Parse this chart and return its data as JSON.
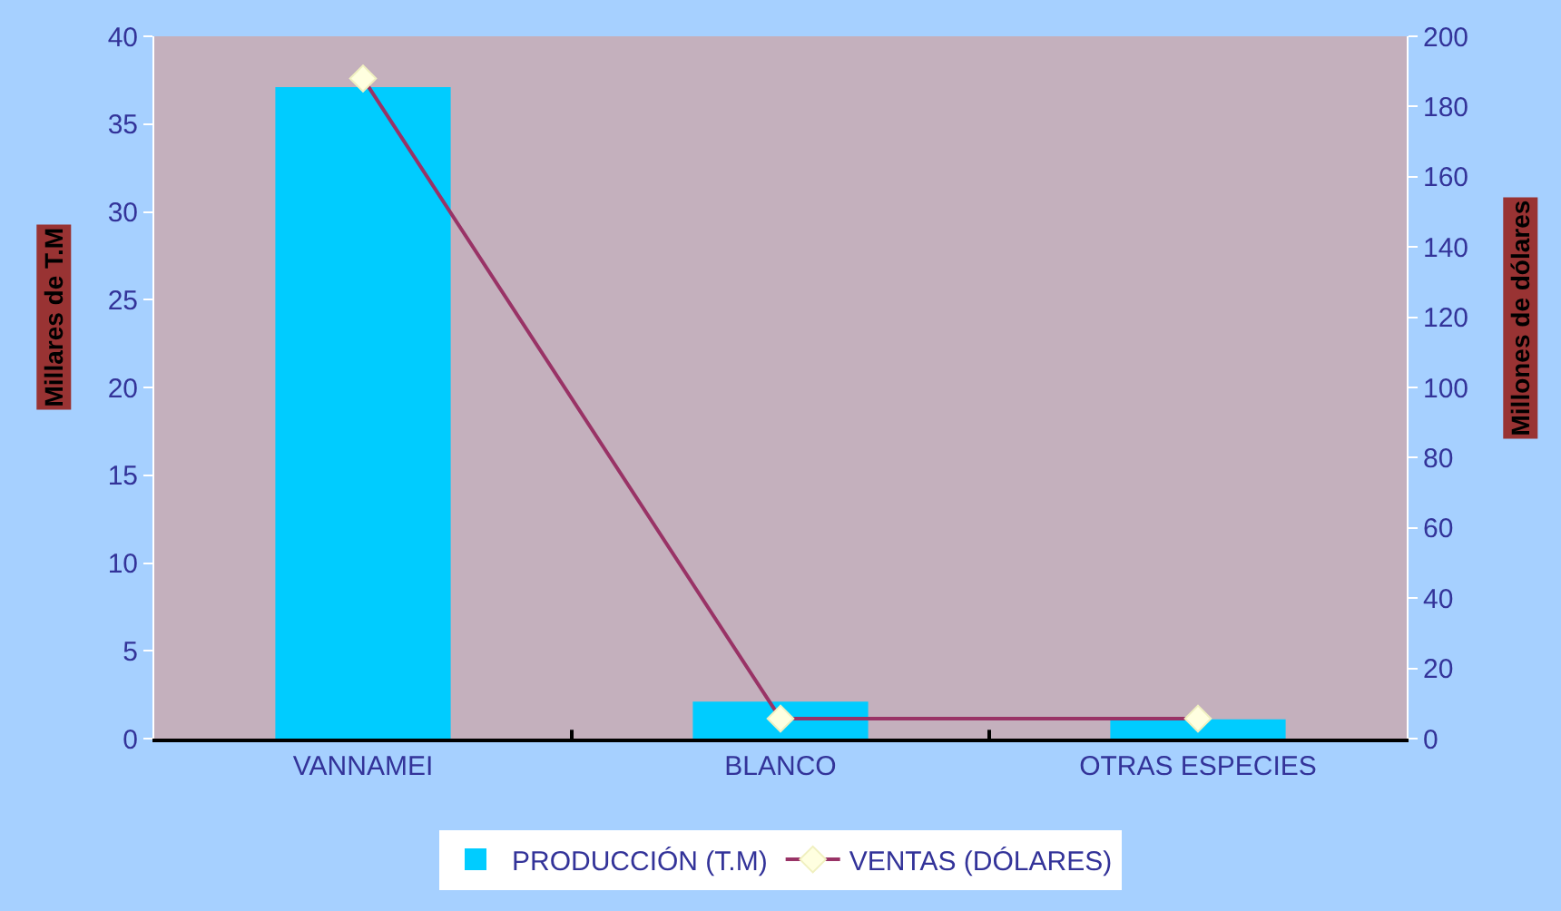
{
  "chart_data": {
    "type": "bar",
    "categories": [
      "VANNAMEI",
      "BLANCO",
      "OTRAS ESPECIES"
    ],
    "series": [
      {
        "name": "PRODUCCIÓN (T.M)",
        "color": "#00ccff",
        "values": [
          37.1,
          2.1,
          1.1
        ]
      },
      {
        "name": "VENTAS (DÓLARES)",
        "color": "#993366",
        "type": "line",
        "axis": "y2",
        "marker": "diamond",
        "values": [
          188,
          5.7,
          5.7
        ]
      }
    ],
    "ylabel": "Millares de T.M",
    "y2label": "Millones de dólares",
    "ylim": [
      0,
      40
    ],
    "yticks": [
      0,
      5,
      10,
      15,
      20,
      25,
      30,
      35,
      40
    ],
    "y2lim": [
      0,
      200
    ],
    "y2ticks": [
      0,
      20,
      40,
      60,
      80,
      100,
      120,
      140,
      160,
      180,
      200
    ],
    "legend": "bottom",
    "grid": false
  }
}
